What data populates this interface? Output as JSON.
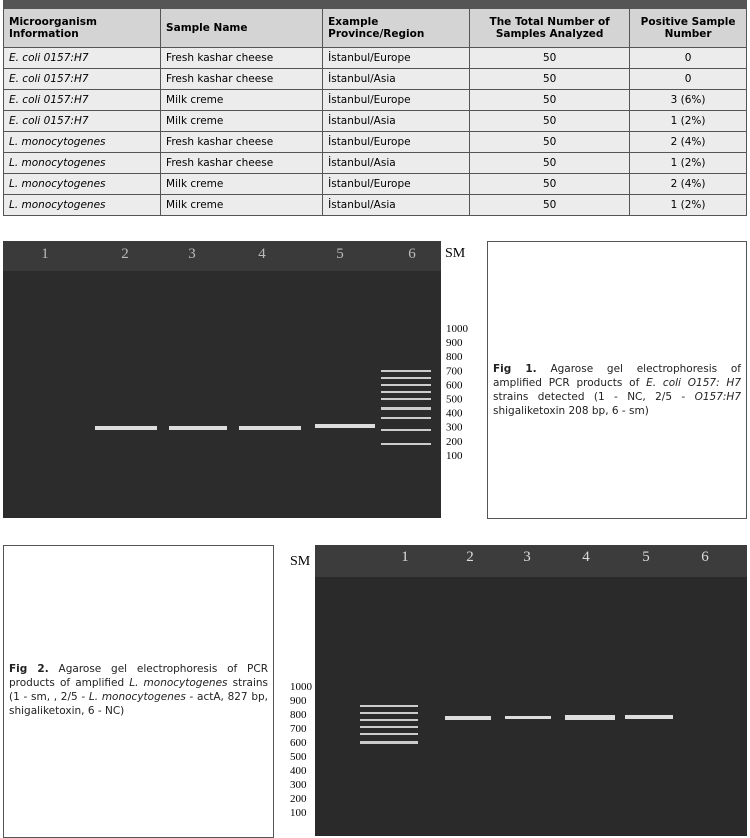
{
  "table": {
    "headers": [
      "Microorganism Information",
      "Sample Name",
      "Example Province/Region",
      "The Total Number of Samples Analyzed",
      "Positive Sample Number"
    ],
    "rows": [
      [
        "E. coli 0157:H7",
        "Fresh kashar cheese",
        "İstanbul/Europe",
        "50",
        "0"
      ],
      [
        "E. coli 0157:H7",
        "Fresh kashar cheese",
        "İstanbul/Asia",
        "50",
        "0"
      ],
      [
        "E. coli 0157:H7",
        "Milk creme",
        "İstanbul/Europe",
        "50",
        "3 (6%)"
      ],
      [
        "E. coli 0157:H7",
        "Milk creme",
        "İstanbul/Asia",
        "50",
        "1 (2%)"
      ],
      [
        "L. monocytogenes",
        "Fresh kashar cheese",
        "İstanbul/Europe",
        "50",
        "2 (4%)"
      ],
      [
        "L. monocytogenes",
        "Fresh kashar cheese",
        "İstanbul/Asia",
        "50",
        "1 (2%)"
      ],
      [
        "L. monocytogenes",
        "Milk creme",
        "İstanbul/Europe",
        "50",
        "2 (4%)"
      ],
      [
        "L. monocytogenes",
        "Milk creme",
        "İstanbul/Asia",
        "50",
        "1 (2%)"
      ]
    ]
  },
  "figure1": {
    "lanes": [
      "1",
      "2",
      "3",
      "4",
      "5",
      "6"
    ],
    "marker": "SM",
    "ladder": [
      "1000",
      "900",
      "800",
      "700",
      "600",
      "500",
      "400",
      "300",
      "200",
      "100"
    ],
    "caption": {
      "label": "Fig 1.",
      "parts": [
        "Agarose gel electrophoresis of amplified PCR products of ",
        "E. coli O157: H7",
        " strains detected (1 - NC, 2/5 - ",
        "O157:H7",
        " shigaliketoxin 208 bp, 6 - sm)"
      ]
    }
  },
  "figure2": {
    "lanes": [
      "1",
      "2",
      "3",
      "4",
      "5",
      "6"
    ],
    "marker": "SM",
    "ladder": [
      "1000",
      "900",
      "800",
      "700",
      "600",
      "500",
      "400",
      "300",
      "200",
      "100"
    ],
    "caption": {
      "label": "Fig 2.",
      "parts": [
        "Agarose gel electrophoresis of PCR products of amplified ",
        "L. monocytogenes",
        " strains (1 - sm, , 2/5 - ",
        "L. monocytogenes",
        " - actA, 827 bp, shigaliketoxin, 6 - NC)"
      ]
    }
  }
}
